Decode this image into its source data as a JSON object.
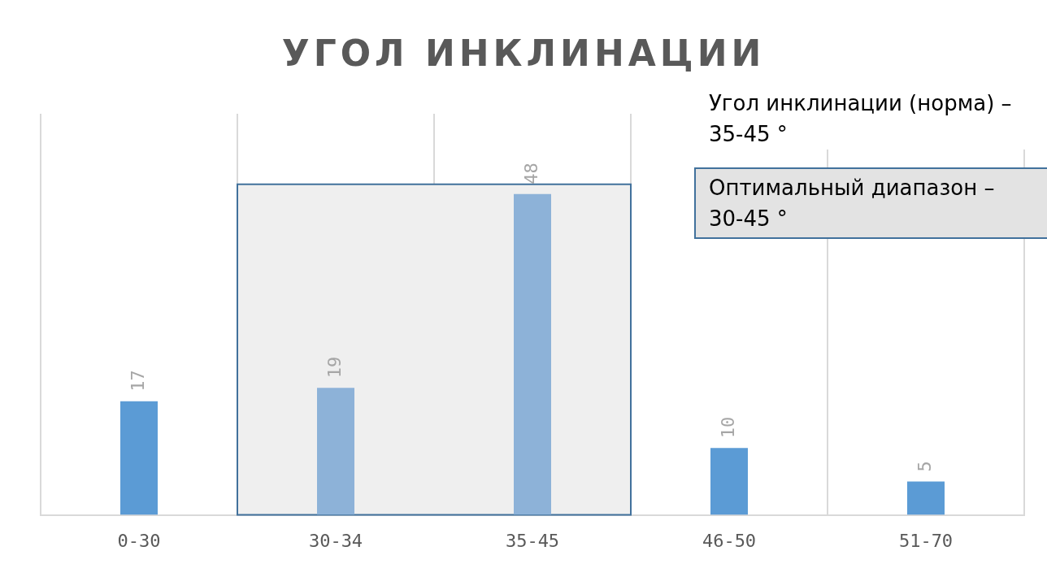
{
  "chart_data": {
    "type": "bar",
    "title": "УГОЛ ИНКЛИНАЦИИ",
    "categories": [
      "0-30",
      "30-34",
      "35-45",
      "46-50",
      "51-70"
    ],
    "values": [
      17,
      19,
      48,
      10,
      5
    ],
    "colors": [
      "#5b9bd5",
      "#8db2d8",
      "#8db2d8",
      "#5b9bd5",
      "#5b9bd5"
    ],
    "data_labels": true,
    "grid": "x",
    "legend": false,
    "bands": [
      {
        "axis": "x",
        "from": "30-34",
        "to": "35-45",
        "color": "#efefef"
      }
    ],
    "annotations": [
      "Угол инклинации (норма) – 35-45 °",
      "Оптимальный диапазон – 30-45 °"
    ]
  }
}
